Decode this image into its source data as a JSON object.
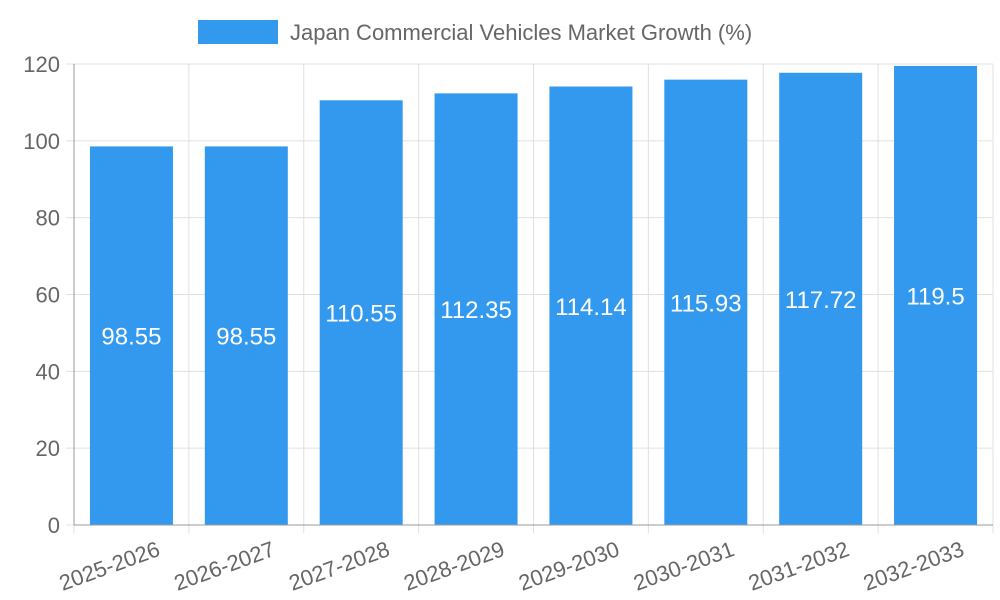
{
  "chart_data": {
    "type": "bar",
    "title": "",
    "legend": [
      "Japan Commercial Vehicles Market Growth (%)"
    ],
    "legend_position": "top",
    "xlabel": "",
    "ylabel": "",
    "categories": [
      "2025-2026",
      "2026-2027",
      "2027-2028",
      "2028-2029",
      "2029-2030",
      "2030-2031",
      "2031-2032",
      "2032-2033"
    ],
    "series": [
      {
        "name": "Japan Commercial Vehicles Market Growth (%)",
        "values": [
          98.55,
          98.55,
          110.55,
          112.35,
          114.14,
          115.93,
          117.72,
          119.5
        ],
        "labels": [
          "98.55",
          "98.55",
          "110.55",
          "112.35",
          "114.14",
          "115.93",
          "117.72",
          "119.5"
        ],
        "color": "#3399ee"
      }
    ],
    "ylim": [
      0,
      120
    ],
    "yticks": [
      "0",
      "20",
      "40",
      "60",
      "80",
      "100",
      "120"
    ],
    "grid": true
  }
}
